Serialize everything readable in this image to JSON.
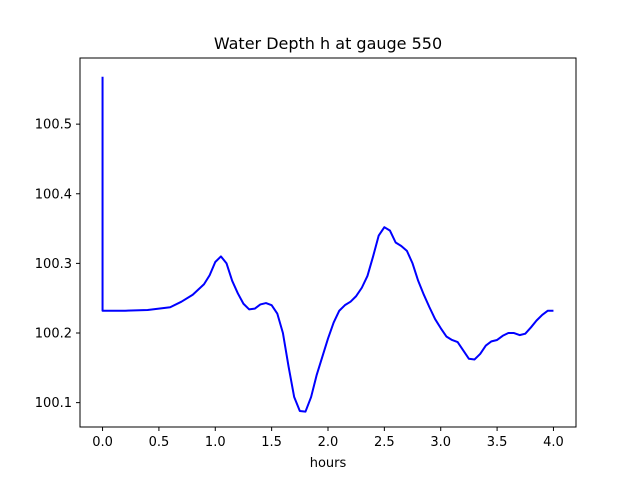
{
  "chart_data": {
    "type": "line",
    "title": "Water Depth h at gauge 550",
    "xlabel": "hours",
    "ylabel": "",
    "xlim": [
      -0.2,
      4.2
    ],
    "ylim": [
      100.065,
      100.595
    ],
    "xticks": [
      0.0,
      0.5,
      1.0,
      1.5,
      2.0,
      2.5,
      3.0,
      3.5,
      4.0
    ],
    "xtick_labels": [
      "0.0",
      "0.5",
      "1.0",
      "1.5",
      "2.0",
      "2.5",
      "3.0",
      "3.5",
      "4.0"
    ],
    "yticks": [
      100.1,
      100.2,
      100.3,
      100.4,
      100.5
    ],
    "ytick_labels": [
      "100.1",
      "100.2",
      "100.3",
      "100.4",
      "100.5"
    ],
    "grid": false,
    "legend": "none",
    "series": [
      {
        "color": "#0000ff",
        "x": [
          0.0,
          0.0,
          0.0,
          0.2,
          0.4,
          0.6,
          0.7,
          0.8,
          0.9,
          0.95,
          1.0,
          1.05,
          1.1,
          1.15,
          1.2,
          1.25,
          1.3,
          1.35,
          1.4,
          1.45,
          1.5,
          1.55,
          1.6,
          1.65,
          1.7,
          1.75,
          1.8,
          1.85,
          1.9,
          1.95,
          2.0,
          2.05,
          2.1,
          2.15,
          2.2,
          2.25,
          2.3,
          2.35,
          2.4,
          2.45,
          2.5,
          2.55,
          2.6,
          2.65,
          2.7,
          2.75,
          2.8,
          2.85,
          2.9,
          2.95,
          3.0,
          3.05,
          3.1,
          3.15,
          3.2,
          3.25,
          3.3,
          3.35,
          3.4,
          3.45,
          3.5,
          3.55,
          3.6,
          3.65,
          3.7,
          3.75,
          3.8,
          3.85,
          3.9,
          3.95,
          4.0
        ],
        "y": [
          100.568,
          100.4,
          100.232,
          100.232,
          100.233,
          100.237,
          100.245,
          100.255,
          100.27,
          100.283,
          100.302,
          100.31,
          100.3,
          100.275,
          100.257,
          100.242,
          100.234,
          100.235,
          100.241,
          100.243,
          100.24,
          100.228,
          100.2,
          100.152,
          100.108,
          100.088,
          100.087,
          100.108,
          100.14,
          100.166,
          100.192,
          100.215,
          100.232,
          100.24,
          100.245,
          100.253,
          100.265,
          100.282,
          100.31,
          100.34,
          100.352,
          100.347,
          100.33,
          100.325,
          100.318,
          100.3,
          100.275,
          100.255,
          100.237,
          100.22,
          100.207,
          100.195,
          100.19,
          100.187,
          100.175,
          100.163,
          100.162,
          100.17,
          100.182,
          100.188,
          100.19,
          100.196,
          100.2,
          100.2,
          100.197,
          100.199,
          100.208,
          100.218,
          100.226,
          100.232,
          100.232
        ]
      }
    ]
  }
}
